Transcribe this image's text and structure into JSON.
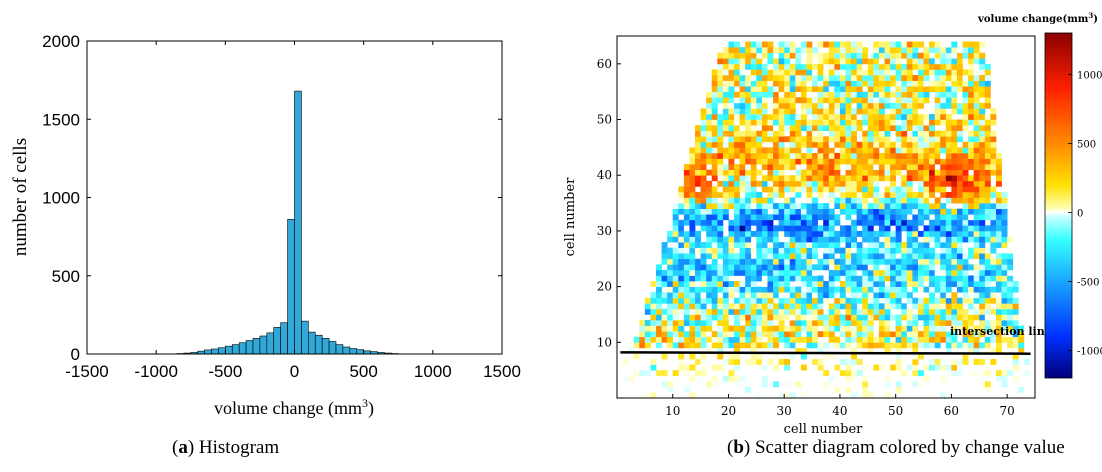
{
  "chart_data": [
    {
      "type": "bar",
      "subtype": "histogram",
      "xlabel": "volume change (mm",
      "xlabel_superscript": "3",
      "xlabel_suffix": ")",
      "ylabel": "number of cells",
      "xlim": [
        -1500,
        1500
      ],
      "ylim": [
        0,
        2000
      ],
      "xticks": [
        -1500,
        -1000,
        -500,
        0,
        500,
        1000,
        1500
      ],
      "yticks": [
        0,
        500,
        1000,
        1500,
        2000
      ],
      "xtick_labels": [
        "-1500",
        "-1000",
        "-500",
        "0",
        "500",
        "1000",
        "1500"
      ],
      "ytick_labels": [
        "0",
        "500",
        "1000",
        "1500",
        "2000"
      ],
      "bar_color": "#31a8d8",
      "bin_width": 50,
      "bins": [
        {
          "x0": -850,
          "v": 3
        },
        {
          "x0": -800,
          "v": 6
        },
        {
          "x0": -750,
          "v": 10
        },
        {
          "x0": -700,
          "v": 18
        },
        {
          "x0": -650,
          "v": 26
        },
        {
          "x0": -600,
          "v": 32
        },
        {
          "x0": -550,
          "v": 40
        },
        {
          "x0": -500,
          "v": 50
        },
        {
          "x0": -450,
          "v": 60
        },
        {
          "x0": -400,
          "v": 72
        },
        {
          "x0": -350,
          "v": 86
        },
        {
          "x0": -300,
          "v": 100
        },
        {
          "x0": -250,
          "v": 115
        },
        {
          "x0": -200,
          "v": 135
        },
        {
          "x0": -150,
          "v": 170
        },
        {
          "x0": -100,
          "v": 200
        },
        {
          "x0": -50,
          "v": 860
        },
        {
          "x0": 0,
          "v": 1680
        },
        {
          "x0": 50,
          "v": 210
        },
        {
          "x0": 100,
          "v": 140
        },
        {
          "x0": 150,
          "v": 120
        },
        {
          "x0": 200,
          "v": 100
        },
        {
          "x0": 250,
          "v": 80
        },
        {
          "x0": 300,
          "v": 60
        },
        {
          "x0": 350,
          "v": 45
        },
        {
          "x0": 400,
          "v": 35
        },
        {
          "x0": 450,
          "v": 28
        },
        {
          "x0": 500,
          "v": 20
        },
        {
          "x0": 550,
          "v": 15
        },
        {
          "x0": 600,
          "v": 10
        },
        {
          "x0": 650,
          "v": 6
        },
        {
          "x0": 700,
          "v": 3
        }
      ],
      "caption_letter": "a",
      "caption_text": "Histogram"
    },
    {
      "type": "heatmap",
      "xlabel": "cell number",
      "ylabel": "cell number",
      "xlim": [
        0,
        75
      ],
      "ylim": [
        0,
        65
      ],
      "xticks": [
        10,
        20,
        30,
        40,
        50,
        60,
        70
      ],
      "yticks": [
        10,
        20,
        30,
        40,
        50,
        60
      ],
      "xtick_labels": [
        "10",
        "20",
        "30",
        "40",
        "50",
        "60",
        "70"
      ],
      "ytick_labels": [
        "10",
        "20",
        "30",
        "40",
        "50",
        "60"
      ],
      "colorbar_title": "volume change(mm",
      "colorbar_title_superscript": "3",
      "colorbar_title_suffix": ")",
      "colorbar_range": [
        -1200,
        1300
      ],
      "colorbar_ticks": [
        -1000,
        -500,
        0,
        500,
        1000
      ],
      "colorbar_tick_labels": [
        "-1000",
        "-500",
        "0",
        "500",
        "1000"
      ],
      "colorbar_stops": [
        {
          "v": -1200,
          "color": "#00007a"
        },
        {
          "v": -900,
          "color": "#0030ff"
        },
        {
          "v": -500,
          "color": "#1aa6ff"
        },
        {
          "v": -200,
          "color": "#33ffff"
        },
        {
          "v": -30,
          "color": "#c8ffff"
        },
        {
          "v": 0,
          "color": "#ffffff"
        },
        {
          "v": 30,
          "color": "#ffffb0"
        },
        {
          "v": 200,
          "color": "#ffe000"
        },
        {
          "v": 500,
          "color": "#ff8a00"
        },
        {
          "v": 900,
          "color": "#ff2000"
        },
        {
          "v": 1300,
          "color": "#8a0000"
        }
      ],
      "annotation": "intersection line",
      "intersection_line_y": 8.2,
      "caption_letter": "b",
      "caption_text": "Scatter diagram colored by change value"
    }
  ]
}
